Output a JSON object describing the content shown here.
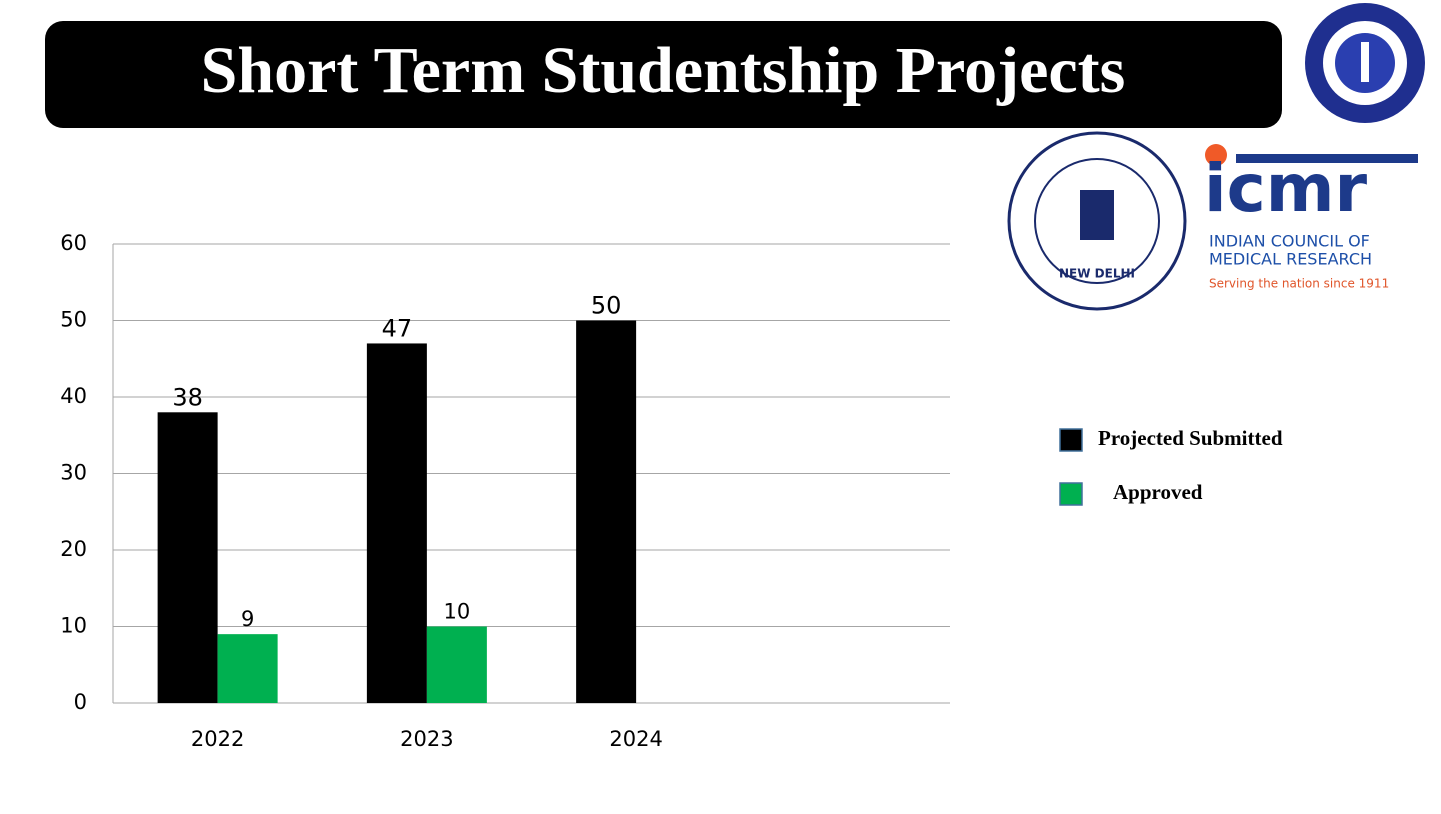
{
  "chart_data": {
    "type": "bar",
    "title": "Short Term Studentship Projects",
    "categories": [
      "2022",
      "2023",
      "2024",
      null
    ],
    "series": [
      {
        "name": "Projected Submitted",
        "color": "#000000",
        "values": [
          38,
          47,
          50,
          null
        ]
      },
      {
        "name": "Approved",
        "color": "#00b050",
        "values": [
          9,
          10,
          null,
          null
        ]
      }
    ],
    "ylim": [
      0,
      60
    ],
    "yticks": [
      0,
      10,
      20,
      30,
      40,
      50,
      60
    ],
    "grid": true,
    "legend": "right"
  },
  "logos": {
    "icmr_wordmark": "icmr",
    "icmr_name_1": "INDIAN COUNCIL OF",
    "icmr_name_2": "MEDICAL RESEARCH",
    "icmr_tagline": "Serving the nation since 1911",
    "seal_city": "NEW DELHI"
  }
}
